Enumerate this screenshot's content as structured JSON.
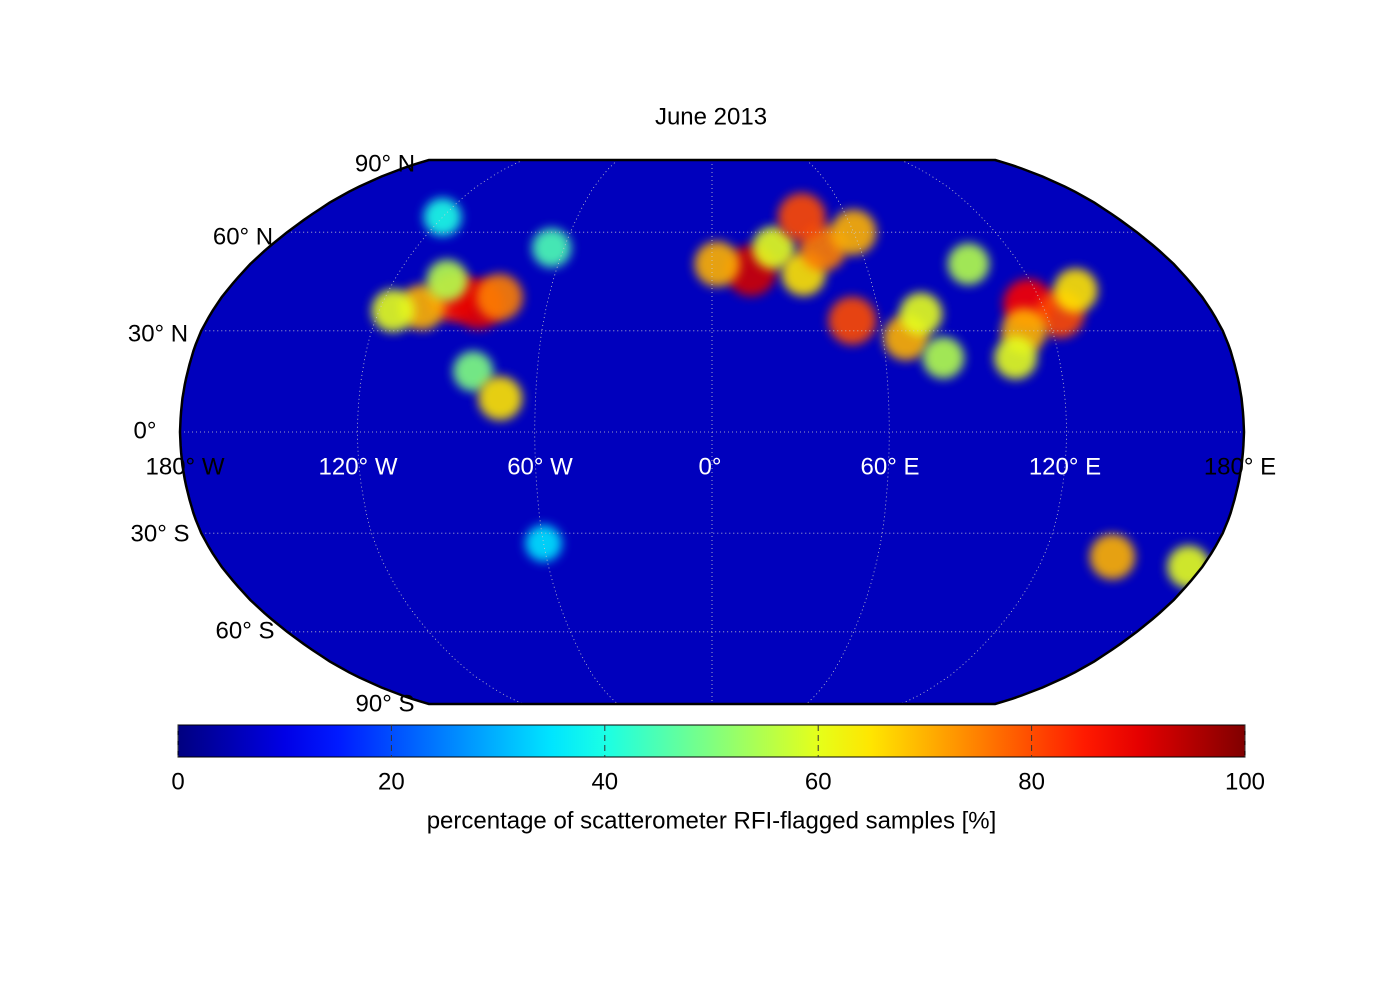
{
  "title": "June 2013",
  "latitude_labels": [
    "90° N",
    "60° N",
    "30° N",
    "0°",
    "30° S",
    "60° S",
    "90° S"
  ],
  "longitude_labels": [
    "180° W",
    "120° W",
    "60° W",
    "0°",
    "60° E",
    "120° E",
    "180° E"
  ],
  "colorbar": {
    "label": "percentage of scatterometer RFI-flagged samples [%]",
    "lim": [
      0,
      100
    ],
    "ticks": [
      0,
      20,
      40,
      60,
      80,
      100
    ],
    "colormap": "jet"
  },
  "hotspots": [
    {
      "lon": -95,
      "lat": 40,
      "value": 85
    },
    {
      "lon": -85,
      "lat": 38,
      "value": 90
    },
    {
      "lon": -105,
      "lat": 37,
      "value": 70
    },
    {
      "lon": -115,
      "lat": 36,
      "value": 60
    },
    {
      "lon": -78,
      "lat": 40,
      "value": 75
    },
    {
      "lon": -100,
      "lat": 45,
      "value": 55
    },
    {
      "lon": -82,
      "lat": 18,
      "value": 50
    },
    {
      "lon": -72,
      "lat": 10,
      "value": 65
    },
    {
      "lon": -60,
      "lat": -33,
      "value": 35
    },
    {
      "lon": -120,
      "lat": 65,
      "value": 40
    },
    {
      "lon": -65,
      "lat": 55,
      "value": 45
    },
    {
      "lon": 15,
      "lat": 48,
      "value": 92
    },
    {
      "lon": 2,
      "lat": 50,
      "value": 70
    },
    {
      "lon": 25,
      "lat": 55,
      "value": 60
    },
    {
      "lon": 35,
      "lat": 47,
      "value": 65
    },
    {
      "lon": 45,
      "lat": 55,
      "value": 75
    },
    {
      "lon": 50,
      "lat": 33,
      "value": 80
    },
    {
      "lon": 68,
      "lat": 28,
      "value": 70
    },
    {
      "lon": 40,
      "lat": 65,
      "value": 80
    },
    {
      "lon": 60,
      "lat": 60,
      "value": 70
    },
    {
      "lon": 75,
      "lat": 35,
      "value": 60
    },
    {
      "lon": 80,
      "lat": 22,
      "value": 55
    },
    {
      "lon": 115,
      "lat": 38,
      "value": 88
    },
    {
      "lon": 125,
      "lat": 35,
      "value": 80
    },
    {
      "lon": 110,
      "lat": 30,
      "value": 70
    },
    {
      "lon": 105,
      "lat": 22,
      "value": 60
    },
    {
      "lon": 100,
      "lat": 50,
      "value": 55
    },
    {
      "lon": 135,
      "lat": 42,
      "value": 65
    },
    {
      "lon": 145,
      "lat": -37,
      "value": 70
    },
    {
      "lon": 175,
      "lat": -40,
      "value": 60
    }
  ]
}
